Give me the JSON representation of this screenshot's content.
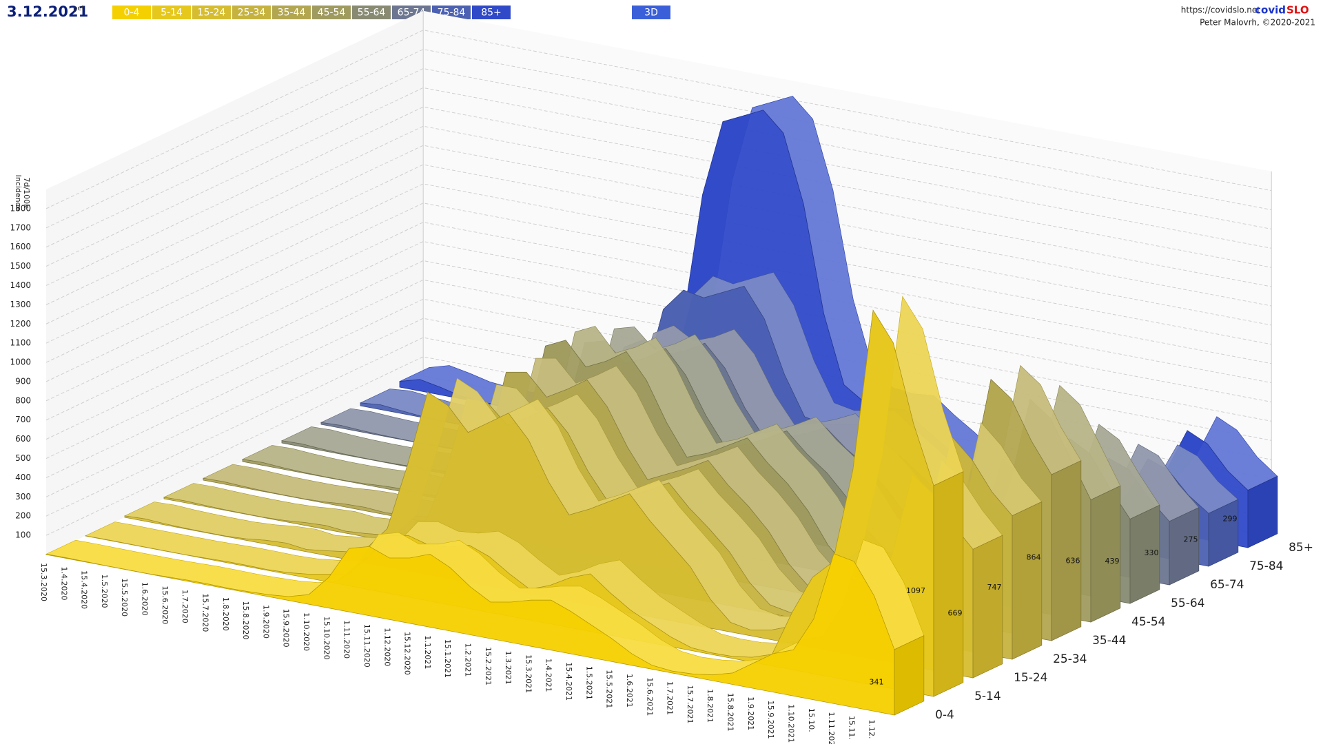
{
  "chart_data": {
    "type": "ridge3d",
    "title": "3.12.2021",
    "title_suffix": "pet",
    "mode_button": "3D",
    "url": "https://covidslo.net",
    "brand_a": "covid",
    "brand_b": "SLO",
    "credit": "Peter Malovrh, ©2020-2021",
    "ylabel": [
      "Incidence",
      "7d/100k"
    ],
    "ylim": [
      0,
      1900
    ],
    "yticks": [
      100,
      200,
      300,
      400,
      500,
      600,
      700,
      800,
      900,
      1000,
      1100,
      1200,
      1300,
      1400,
      1500,
      1600,
      1700,
      1800
    ],
    "grid": true,
    "categories": [
      "15.3.2020",
      "1.4.2020",
      "15.4.2020",
      "1.5.2020",
      "15.5.2020",
      "1.6.2020",
      "15.6.2020",
      "1.7.2020",
      "15.7.2020",
      "1.8.2020",
      "15.8.2020",
      "1.9.2020",
      "15.9.2020",
      "1.10.2020",
      "15.10.2020",
      "1.11.2020",
      "15.11.2020",
      "1.12.2020",
      "15.12.2020",
      "1.1.2021",
      "15.1.2021",
      "1.2.2021",
      "15.2.2021",
      "1.3.2021",
      "15.3.2021",
      "1.4.2021",
      "15.4.2021",
      "1.5.2021",
      "15.5.2021",
      "1.6.2021",
      "15.6.2021",
      "1.7.2021",
      "15.7.2021",
      "1.8.2021",
      "15.8.2021",
      "1.9.2021",
      "15.9.2021",
      "1.10.2021",
      "15.10.",
      "1.11.2021",
      "15.11.",
      "1.12.",
      null
    ],
    "series": [
      {
        "name": "0-4",
        "color": "#f5d000",
        "values": [
          2,
          3,
          2,
          1,
          1,
          1,
          3,
          6,
          6,
          4,
          6,
          10,
          20,
          50,
          160,
          330,
          360,
          320,
          340,
          380,
          330,
          250,
          190,
          210,
          240,
          260,
          220,
          170,
          120,
          60,
          20,
          10,
          15,
          30,
          60,
          130,
          200,
          240,
          420,
          780,
          760,
          600,
          341
        ]
      },
      {
        "name": "5-14",
        "color": "#e6c71c",
        "values": [
          1,
          2,
          1,
          1,
          1,
          1,
          3,
          6,
          6,
          4,
          8,
          20,
          40,
          60,
          170,
          300,
          320,
          290,
          300,
          330,
          290,
          220,
          160,
          200,
          260,
          300,
          220,
          150,
          100,
          50,
          15,
          8,
          10,
          25,
          60,
          300,
          500,
          600,
          1100,
          1950,
          1800,
          1400,
          1097
        ]
      },
      {
        "name": "15-24",
        "color": "#d6bd30",
        "values": [
          8,
          12,
          6,
          3,
          2,
          2,
          8,
          20,
          25,
          12,
          25,
          40,
          80,
          200,
          550,
          950,
          900,
          780,
          850,
          920,
          800,
          600,
          450,
          500,
          560,
          620,
          500,
          400,
          300,
          150,
          50,
          30,
          50,
          90,
          140,
          250,
          300,
          320,
          560,
          1000,
          920,
          780,
          669
        ]
      },
      {
        "name": "25-34",
        "color": "#c6b33f",
        "values": [
          8,
          10,
          6,
          3,
          2,
          2,
          6,
          15,
          20,
          10,
          18,
          30,
          60,
          150,
          430,
          820,
          820,
          720,
          780,
          850,
          740,
          560,
          420,
          470,
          520,
          580,
          470,
          380,
          280,
          140,
          45,
          25,
          35,
          70,
          120,
          240,
          300,
          330,
          600,
          1100,
          1000,
          850,
          747
        ]
      },
      {
        "name": "35-44",
        "color": "#b3a650",
        "values": [
          10,
          12,
          7,
          3,
          2,
          2,
          6,
          15,
          18,
          10,
          16,
          28,
          55,
          140,
          420,
          860,
          880,
          770,
          830,
          900,
          780,
          590,
          440,
          490,
          540,
          600,
          490,
          400,
          290,
          140,
          40,
          22,
          30,
          60,
          110,
          260,
          360,
          420,
          760,
          1300,
          1220,
          1020,
          864
        ]
      },
      {
        "name": "45-54",
        "color": "#9f9b5f",
        "values": [
          12,
          15,
          8,
          4,
          2,
          2,
          5,
          12,
          15,
          9,
          14,
          25,
          50,
          140,
          430,
          900,
          950,
          830,
          880,
          950,
          820,
          620,
          460,
          500,
          560,
          620,
          510,
          420,
          300,
          140,
          38,
          20,
          25,
          50,
          90,
          220,
          300,
          350,
          640,
          1100,
          1020,
          830,
          636
        ]
      },
      {
        "name": "55-64",
        "color": "#888b72",
        "values": [
          12,
          15,
          8,
          4,
          2,
          2,
          4,
          10,
          12,
          8,
          12,
          22,
          45,
          130,
          400,
          820,
          850,
          750,
          800,
          870,
          750,
          560,
          410,
          450,
          500,
          560,
          460,
          380,
          270,
          120,
          30,
          15,
          18,
          35,
          65,
          160,
          220,
          260,
          470,
          800,
          740,
          580,
          439
        ]
      },
      {
        "name": "65-74",
        "color": "#6c7690",
        "values": [
          10,
          14,
          8,
          4,
          2,
          1,
          3,
          8,
          10,
          6,
          10,
          18,
          40,
          110,
          350,
          700,
          760,
          700,
          740,
          800,
          690,
          500,
          360,
          390,
          430,
          480,
          390,
          320,
          220,
          100,
          25,
          12,
          14,
          28,
          50,
          120,
          170,
          200,
          360,
          600,
          560,
          430,
          330
        ]
      },
      {
        "name": "75-84",
        "color": "#4c61b2",
        "values": [
          15,
          25,
          15,
          6,
          2,
          1,
          3,
          7,
          8,
          5,
          8,
          15,
          40,
          120,
          380,
          800,
          920,
          900,
          950,
          1000,
          850,
          580,
          380,
          360,
          380,
          400,
          320,
          250,
          170,
          80,
          20,
          10,
          12,
          22,
          40,
          100,
          140,
          170,
          300,
          500,
          460,
          350,
          275
        ]
      },
      {
        "name": "85+",
        "color": "#2f49c8",
        "values": [
          30,
          60,
          40,
          15,
          5,
          2,
          4,
          8,
          10,
          6,
          10,
          20,
          60,
          200,
          600,
          1300,
          1700,
          1750,
          1800,
          1700,
          1350,
          800,
          450,
          380,
          370,
          380,
          300,
          230,
          150,
          70,
          18,
          8,
          10,
          20,
          40,
          110,
          160,
          190,
          330,
          550,
          500,
          380,
          299
        ]
      }
    ]
  }
}
